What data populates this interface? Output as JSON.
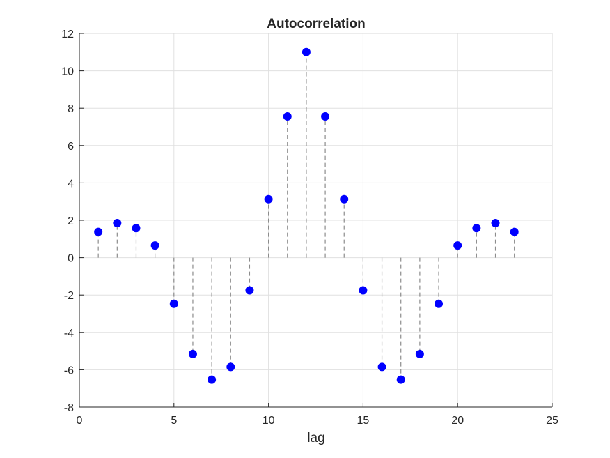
{
  "chart_data": {
    "type": "stem",
    "title": "Autocorrelation",
    "xlabel": "lag",
    "ylabel": "",
    "xlim": [
      0,
      25
    ],
    "ylim": [
      -8,
      12
    ],
    "xticks": [
      0,
      5,
      10,
      15,
      20,
      25
    ],
    "yticks": [
      -8,
      -6,
      -4,
      -2,
      0,
      2,
      4,
      6,
      8,
      10,
      12
    ],
    "grid": true,
    "x": [
      1,
      2,
      3,
      4,
      5,
      6,
      7,
      8,
      9,
      10,
      11,
      12,
      13,
      14,
      15,
      16,
      17,
      18,
      19,
      20,
      21,
      22,
      23
    ],
    "values": [
      1.38,
      1.85,
      1.58,
      0.65,
      -2.47,
      -5.16,
      -6.53,
      -5.85,
      -1.75,
      3.13,
      7.56,
      11.0,
      7.56,
      3.13,
      -1.75,
      -5.85,
      -6.53,
      -5.16,
      -2.47,
      0.65,
      1.58,
      1.85,
      1.38
    ],
    "marker_color": "#0000ff",
    "stem_color": "#8c8c8c"
  }
}
